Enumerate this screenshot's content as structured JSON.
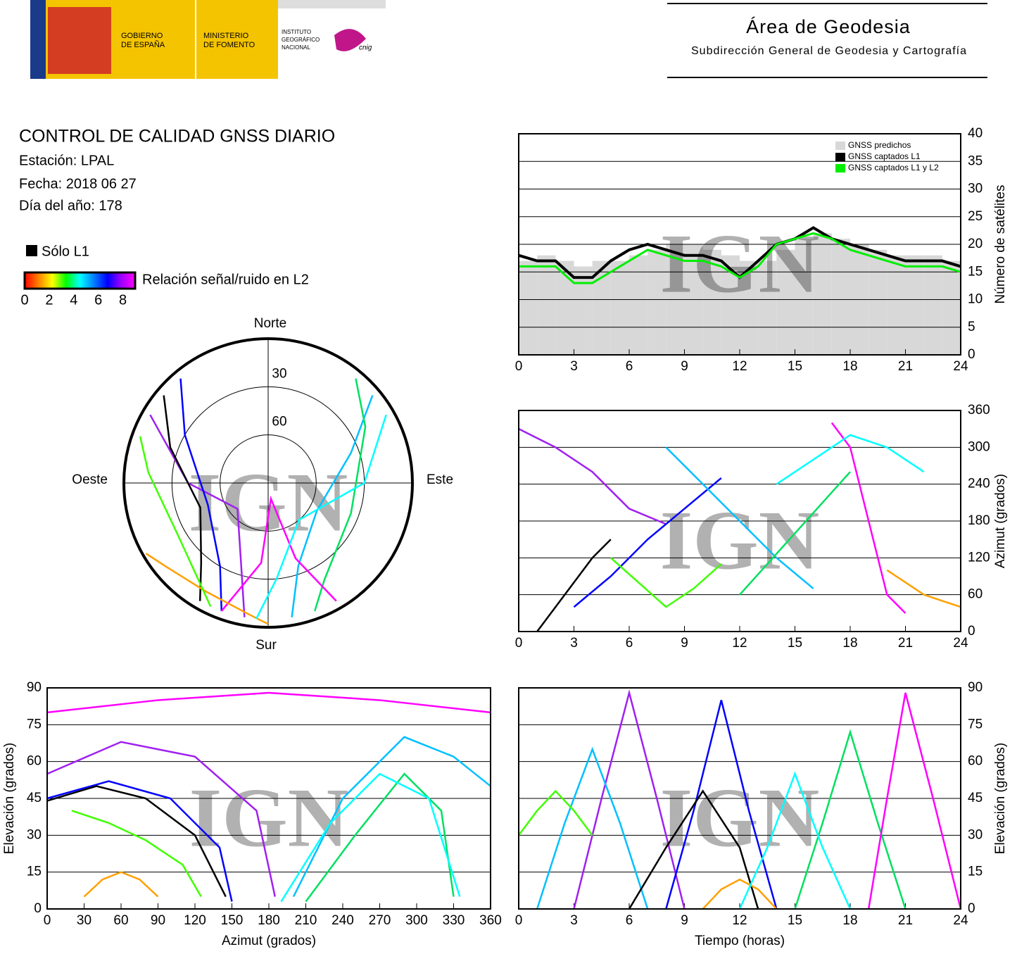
{
  "header": {
    "gov": [
      "GOBIERNO",
      "DE ESPAÑA"
    ],
    "ministry": [
      "MINISTERIO",
      "DE FOMENTO"
    ],
    "institute": [
      "INSTITUTO",
      "GEOGRÁFICO",
      "NACIONAL"
    ],
    "cnig": "cnig",
    "area": "Área de Geodesia",
    "subdirection": "Subdirección General de Geodesia y Cartografía"
  },
  "info": {
    "title": "CONTROL DE CALIDAD GNSS DIARIO",
    "station": "Estación: LPAL",
    "date": "Fecha: 2018 06 27",
    "doy": "Día del año: 178"
  },
  "legend": {
    "l1only": "Sólo L1",
    "colorbar_label": "Relación señal/ruido en L2",
    "colorbar_lim": [
      0,
      9
    ],
    "colorbar_ticks": [
      0,
      2,
      4,
      6,
      8
    ],
    "colorbar_colors": [
      "#ff0000",
      "#ff8000",
      "#ffff00",
      "#00ff00",
      "#00ffff",
      "#0080ff",
      "#0000ff",
      "#a000ff",
      "#ff00ff"
    ]
  },
  "chart_data": [
    {
      "type": "polar",
      "north": "Norte",
      "south": "Sur",
      "east": "Este",
      "west": "Oeste",
      "rticks": [
        30,
        60
      ],
      "watermark": "IGN",
      "series": [
        {
          "color": "#a020f0",
          "az": [
            300,
            270,
            230,
            200,
            190
          ],
          "values": [
            5,
            40,
            65,
            40,
            5
          ]
        },
        {
          "color": "#0000ff",
          "az": [
            320,
            300,
            250,
            210,
            200
          ],
          "values": [
            5,
            30,
            50,
            30,
            5
          ]
        },
        {
          "color": "#00c0ff",
          "az": [
            50,
            70,
            120,
            160,
            170
          ],
          "values": [
            5,
            35,
            55,
            35,
            5
          ]
        },
        {
          "color": "#00e060",
          "az": [
            40,
            60,
            110,
            150,
            160
          ],
          "values": [
            5,
            20,
            35,
            20,
            5
          ]
        },
        {
          "color": "#ff00ff",
          "az": [
            200,
            185,
            170,
            160,
            150
          ],
          "values": [
            5,
            40,
            80,
            40,
            5
          ]
        },
        {
          "color": "#000000",
          "az": [
            310,
            290,
            250,
            220,
            210
          ],
          "values": [
            5,
            25,
            45,
            25,
            5
          ]
        },
        {
          "color": "#ffa000",
          "az": [
            240,
            230,
            210,
            190,
            180
          ],
          "values": [
            2,
            8,
            12,
            8,
            2
          ]
        },
        {
          "color": "#00ffff",
          "az": [
            60,
            90,
            140,
            175,
            185
          ],
          "values": [
            5,
            30,
            60,
            30,
            5
          ]
        },
        {
          "color": "#40ff00",
          "az": [
            290,
            275,
            240,
            215,
            205
          ],
          "values": [
            5,
            15,
            25,
            15,
            5
          ]
        }
      ]
    },
    {
      "type": "satellites",
      "xlim": [
        0,
        24
      ],
      "xticks": [
        0,
        3,
        6,
        9,
        12,
        15,
        18,
        21,
        24
      ],
      "ylim": [
        0,
        40
      ],
      "yticks": [
        0,
        5,
        10,
        15,
        20,
        25,
        30,
        35,
        40
      ],
      "ylabel": "Número de satélites",
      "watermark": "IGN",
      "x": [
        0,
        1,
        2,
        3,
        4,
        5,
        6,
        7,
        8,
        9,
        10,
        11,
        12,
        13,
        14,
        15,
        16,
        17,
        18,
        19,
        20,
        21,
        22,
        23,
        24
      ],
      "series": [
        {
          "name": "GNSS predichos",
          "color": "#d8d8d8",
          "values": [
            17,
            18,
            17,
            16,
            17,
            17,
            18,
            19,
            20,
            20,
            19,
            18,
            17,
            17,
            19,
            21,
            22,
            21,
            20,
            19,
            18,
            18,
            18,
            17,
            16
          ]
        },
        {
          "name": "GNSS captados L1",
          "color": "#000000",
          "values": [
            18,
            17,
            17,
            14,
            14,
            17,
            19,
            20,
            19,
            18,
            18,
            17,
            14,
            17,
            20,
            21,
            23,
            21,
            20,
            19,
            18,
            17,
            17,
            17,
            16
          ]
        },
        {
          "name": "GNSS captados L1 y L2",
          "color": "#00ee00",
          "values": [
            16,
            16,
            16,
            13,
            13,
            15,
            17,
            19,
            18,
            17,
            17,
            16,
            14,
            16,
            20,
            21,
            22,
            21,
            19,
            18,
            17,
            16,
            16,
            16,
            15
          ]
        }
      ]
    },
    {
      "type": "tracks",
      "xlim": [
        0,
        24
      ],
      "xticks": [
        0,
        3,
        6,
        9,
        12,
        15,
        18,
        21,
        24
      ],
      "ylim": [
        0,
        360
      ],
      "yticks": [
        0,
        60,
        120,
        180,
        240,
        300,
        360
      ],
      "ylabel": "Azimut (grados)",
      "watermark": "IGN",
      "series": [
        {
          "color": "#a020f0",
          "x": [
            0,
            2,
            4,
            6,
            8
          ],
          "values": [
            330,
            300,
            260,
            200,
            175
          ]
        },
        {
          "color": "#0000ff",
          "x": [
            3,
            5,
            7,
            9,
            11
          ],
          "values": [
            40,
            90,
            150,
            200,
            250
          ]
        },
        {
          "color": "#00c0ff",
          "x": [
            8,
            10,
            12,
            14,
            16
          ],
          "values": [
            300,
            240,
            180,
            120,
            70
          ]
        },
        {
          "color": "#00e060",
          "x": [
            12,
            13.5,
            15,
            16.5,
            18
          ],
          "values": [
            60,
            110,
            160,
            210,
            260
          ]
        },
        {
          "color": "#ff00ff",
          "x": [
            17,
            18,
            19,
            20,
            21
          ],
          "values": [
            340,
            300,
            180,
            60,
            30
          ]
        },
        {
          "color": "#000000",
          "x": [
            1,
            2,
            3,
            4,
            5
          ],
          "values": [
            0,
            40,
            80,
            120,
            150
          ]
        },
        {
          "color": "#ffa000",
          "x": [
            20,
            21,
            22,
            23,
            24
          ],
          "values": [
            100,
            80,
            60,
            50,
            40
          ]
        },
        {
          "color": "#00ffff",
          "x": [
            14,
            16,
            18,
            20,
            22
          ],
          "values": [
            240,
            280,
            320,
            300,
            260
          ]
        },
        {
          "color": "#40ff00",
          "x": [
            5,
            6.5,
            8,
            9.5,
            11
          ],
          "values": [
            120,
            80,
            40,
            70,
            110
          ]
        }
      ]
    },
    {
      "type": "tracks",
      "xlim": [
        0,
        360
      ],
      "xticks": [
        0,
        30,
        60,
        90,
        120,
        150,
        180,
        210,
        240,
        270,
        300,
        330,
        360
      ],
      "ylim": [
        0,
        90
      ],
      "yticks": [
        0,
        15,
        30,
        45,
        60,
        75,
        90
      ],
      "xlabel": "Azimut (grados)",
      "ylabel": "Elevación (grados)",
      "watermark": "IGN",
      "series": [
        {
          "color": "#a020f0",
          "x": [
            0,
            60,
            120,
            170,
            185
          ],
          "values": [
            55,
            68,
            62,
            40,
            5
          ]
        },
        {
          "color": "#0000ff",
          "x": [
            0,
            50,
            100,
            140,
            150
          ],
          "values": [
            45,
            52,
            45,
            25,
            3
          ]
        },
        {
          "color": "#00c0ff",
          "x": [
            200,
            240,
            290,
            330,
            360
          ],
          "values": [
            5,
            45,
            70,
            62,
            50
          ]
        },
        {
          "color": "#00e060",
          "x": [
            210,
            250,
            290,
            320,
            330
          ],
          "values": [
            3,
            30,
            55,
            40,
            5
          ]
        },
        {
          "color": "#ff00ff",
          "x": [
            0,
            90,
            180,
            270,
            360
          ],
          "values": [
            80,
            85,
            88,
            85,
            80
          ]
        },
        {
          "color": "#000000",
          "x": [
            0,
            40,
            80,
            120,
            145
          ],
          "values": [
            44,
            50,
            45,
            30,
            5
          ]
        },
        {
          "color": "#ffa000",
          "x": [
            30,
            45,
            60,
            75,
            90
          ],
          "values": [
            5,
            12,
            15,
            12,
            5
          ]
        },
        {
          "color": "#00ffff",
          "x": [
            190,
            230,
            270,
            310,
            335
          ],
          "values": [
            3,
            35,
            55,
            45,
            5
          ]
        },
        {
          "color": "#40ff00",
          "x": [
            20,
            50,
            80,
            110,
            125
          ],
          "values": [
            40,
            35,
            28,
            18,
            5
          ]
        }
      ]
    },
    {
      "type": "tracks",
      "xlim": [
        0,
        24
      ],
      "xticks": [
        0,
        3,
        6,
        9,
        12,
        15,
        18,
        21,
        24
      ],
      "ylim": [
        0,
        90
      ],
      "yticks": [
        0,
        15,
        30,
        45,
        60,
        75,
        90
      ],
      "xlabel": "Tiempo (horas)",
      "ylabel": "Elevación (grados)",
      "watermark": "IGN",
      "series": [
        {
          "color": "#a020f0",
          "x": [
            3,
            4.5,
            6,
            7.5,
            9
          ],
          "values": [
            0,
            45,
            88,
            45,
            0
          ]
        },
        {
          "color": "#0000ff",
          "x": [
            8,
            9.5,
            11,
            12.5,
            14
          ],
          "values": [
            0,
            40,
            85,
            40,
            0
          ]
        },
        {
          "color": "#00c0ff",
          "x": [
            1,
            2.5,
            4,
            5.5,
            7
          ],
          "values": [
            0,
            35,
            65,
            35,
            0
          ]
        },
        {
          "color": "#00e060",
          "x": [
            15,
            16.5,
            18,
            19.5,
            21
          ],
          "values": [
            0,
            35,
            72,
            35,
            0
          ]
        },
        {
          "color": "#ff00ff",
          "x": [
            19,
            20,
            21,
            22.5,
            24
          ],
          "values": [
            0,
            45,
            88,
            45,
            0
          ]
        },
        {
          "color": "#000000",
          "x": [
            6,
            8,
            10,
            12,
            13
          ],
          "values": [
            0,
            25,
            48,
            25,
            0
          ]
        },
        {
          "color": "#ffa000",
          "x": [
            10,
            11,
            12,
            13,
            14
          ],
          "values": [
            0,
            8,
            12,
            8,
            0
          ]
        },
        {
          "color": "#00ffff",
          "x": [
            12,
            13.5,
            15,
            16.5,
            18
          ],
          "values": [
            0,
            25,
            55,
            25,
            0
          ]
        },
        {
          "color": "#40ff00",
          "x": [
            0,
            1,
            2,
            3,
            4
          ],
          "values": [
            30,
            40,
            48,
            40,
            30
          ]
        }
      ]
    }
  ]
}
